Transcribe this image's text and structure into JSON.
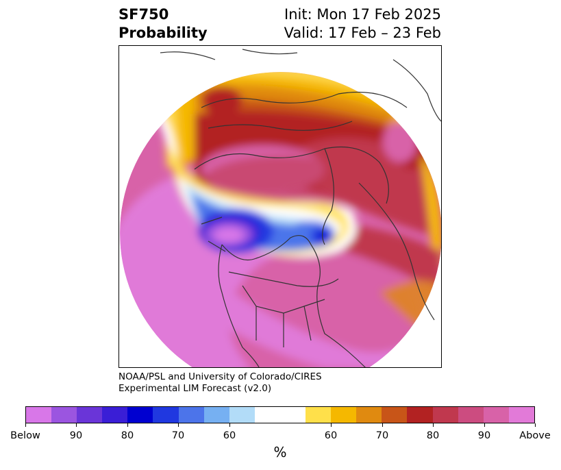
{
  "header": {
    "variable": "SF750",
    "product": "Probability",
    "init": "Init: Mon 17 Feb 2025",
    "valid": "Valid: 17 Feb – 23 Feb"
  },
  "credit": {
    "line1": "NOAA/PSL and University of Colorado/CIRES",
    "line2": "Experimental LIM Forecast (v2.0)"
  },
  "colorbar": {
    "unit": "%",
    "colors": [
      "#d877e8",
      "#9b55e0",
      "#6a35d8",
      "#3a1ed6",
      "#0000d0",
      "#2038e0",
      "#4c74ea",
      "#76b0f2",
      "#b2dcf8",
      "#ffffff",
      "#ffffff",
      "#ffe04a",
      "#f5b800",
      "#e08a10",
      "#c85518",
      "#b22222",
      "#c0384e",
      "#cc4c80",
      "#d862a8",
      "#e27ad8"
    ],
    "tick_labels": [
      "Below",
      "90",
      "80",
      "70",
      "60",
      "60",
      "70",
      "80",
      "90",
      "Above"
    ]
  }
}
